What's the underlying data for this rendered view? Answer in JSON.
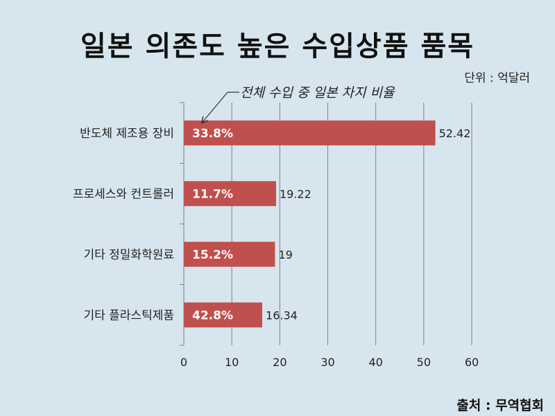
{
  "title": "일본 의존도 높은 수입상품 품목",
  "unit": "단위 : 억달러",
  "annotation": "전체 수입 중 일본 차지 비율",
  "source": "출처 : 무역협회",
  "colors": {
    "bar": "#c0504d",
    "background": "#d7e6ee",
    "grid": "#7f7f7f"
  },
  "chart_data": {
    "type": "bar",
    "orientation": "horizontal",
    "categories": [
      "반도체 제조용 장비",
      "프로세스와 컨트롤러",
      "기타 정밀화학원료",
      "기타 플라스틱제품"
    ],
    "values": [
      52.42,
      19.22,
      19,
      16.34
    ],
    "value_labels": [
      "52.42",
      "19.22",
      "19",
      "16.34"
    ],
    "bar_labels": [
      "33.8%",
      "11.7%",
      "15.2%",
      "42.8%"
    ],
    "xlim": [
      0,
      60
    ],
    "xticks": [
      0,
      10,
      20,
      30,
      40,
      50,
      60
    ],
    "grid": true
  }
}
